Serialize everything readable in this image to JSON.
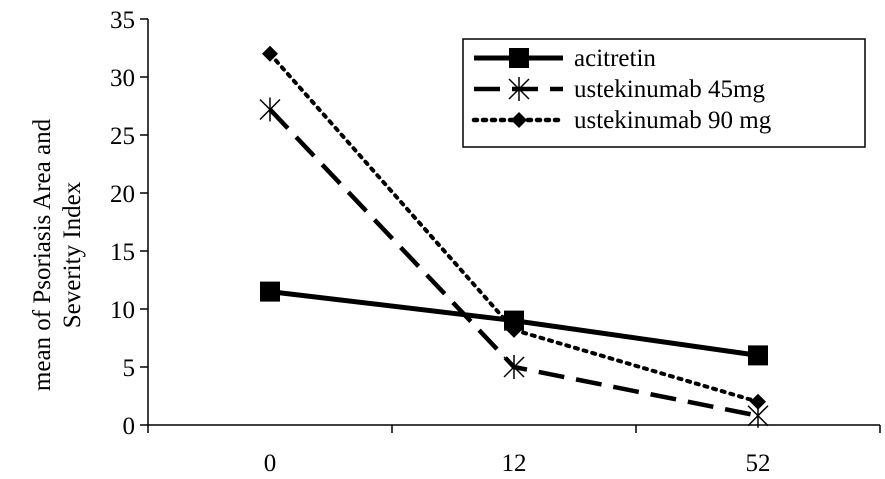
{
  "chart_data": {
    "type": "line",
    "title": "",
    "xlabel": "",
    "ylabel_lines": [
      "mean of Psoriasis Area and",
      "Severity Index"
    ],
    "categories": [
      "0",
      "12",
      "52"
    ],
    "ylim": [
      0,
      35
    ],
    "yticks": [
      0,
      5,
      10,
      15,
      20,
      25,
      30,
      35
    ],
    "grid": false,
    "legend_position": "top-right",
    "series": [
      {
        "name": "acitretin",
        "values": [
          11.5,
          9.0,
          6.0
        ],
        "line_style": "solid",
        "marker": "square",
        "color": "#000000"
      },
      {
        "name": "ustekinumab 45mg",
        "values": [
          27.2,
          5.0,
          0.8
        ],
        "line_style": "dashed",
        "marker": "asterisk",
        "color": "#000000"
      },
      {
        "name": "ustekinumab 90 mg",
        "values": [
          32.0,
          8.2,
          2.0
        ],
        "line_style": "dotted",
        "marker": "diamond",
        "color": "#000000"
      }
    ]
  }
}
